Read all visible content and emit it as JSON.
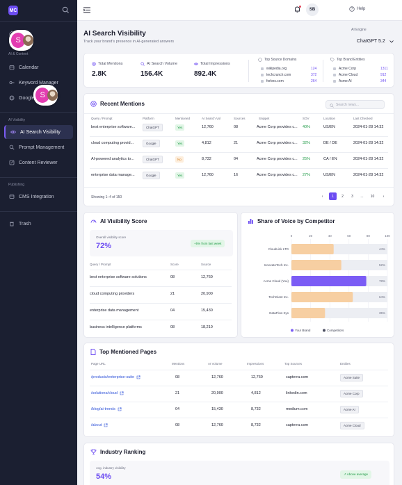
{
  "app": {
    "logo_text": "MC",
    "title": "AI Search Visibility",
    "subtitle": "Track your brand's presence in AI-generated answers"
  },
  "colors": {
    "accent": "#6d4df2",
    "green": "#1f9a46",
    "orange": "#f7cfa2",
    "sidebar": "#1b1f31"
  },
  "sidebar": {
    "sections": [
      "AI & Content",
      "AI Visibility",
      "Publishing"
    ],
    "items": [
      {
        "label": "Calendar",
        "icon": "calendar-icon"
      },
      {
        "label": "Keyword Manager",
        "icon": "key-icon"
      },
      {
        "label": "Google ...",
        "icon": "globe-icon"
      },
      {
        "label": "AI Search Visibility",
        "icon": "eye-icon"
      },
      {
        "label": "Prompt Management",
        "icon": "search-icon"
      },
      {
        "label": "Content Reviewer",
        "icon": "edit-icon"
      },
      {
        "label": "CMS Integration",
        "icon": "plug-icon"
      },
      {
        "label": "Trash",
        "icon": "trash-icon"
      }
    ],
    "avatar_letter": "S"
  },
  "topbar": {
    "help": "Help",
    "user_initials": "SB"
  },
  "engine": {
    "label": "AI Engine",
    "value": "ChatGPT 5.2"
  },
  "metrics": [
    {
      "label": "Total Mentions",
      "value": "2.8K",
      "icon": "at-icon"
    },
    {
      "label": "AI Search Volume",
      "value": "156.4K",
      "icon": "search-icon"
    },
    {
      "label": "Total Impressions",
      "value": "892.4K",
      "icon": "eye-icon"
    }
  ],
  "top_domains": {
    "title": "Top Source Domains",
    "rows": [
      {
        "name": "wikipedia.org",
        "count": "124"
      },
      {
        "name": "techcrunch.com",
        "count": "372"
      },
      {
        "name": "forbes.com",
        "count": "264"
      }
    ]
  },
  "top_entities": {
    "title": "Top Brand Entities",
    "rows": [
      {
        "name": "Acme Corp",
        "count": "1311"
      },
      {
        "name": "Acme Cloud",
        "count": "912"
      },
      {
        "name": "Acme AI",
        "count": "344"
      }
    ]
  },
  "recent_mentions": {
    "title": "Recent Mentions",
    "search_placeholder": "Search news...",
    "columns": [
      "Query / Prompt",
      "Platform",
      "Mentioned",
      "AI Search Vol",
      "Sources",
      "Snippet",
      "SOV",
      "Location",
      "Last Checked"
    ],
    "rows": [
      {
        "query": "best enterprise software...",
        "platform": "ChatGPT",
        "mentioned": "Yes",
        "vol": "12,760",
        "sources": "08",
        "snippet": "Acme Corp provides c...",
        "sov": "40%",
        "location": "US/EN",
        "checked": "2024-01-28 14:32"
      },
      {
        "query": "cloud computing provid...",
        "platform": "Google",
        "mentioned": "Yes",
        "vol": "4,812",
        "sources": "21",
        "snippet": "Acme Corp provides c...",
        "sov": "32%",
        "location": "DE / DE",
        "checked": "2024-01-28 14:32"
      },
      {
        "query": "AI-powered analytics to...",
        "platform": "ChatGPT",
        "mentioned": "No",
        "vol": "8,732",
        "sources": "04",
        "snippet": "Acme Corp provides c...",
        "sov": "25%",
        "location": "CA / EN",
        "checked": "2024-01-28 14:32"
      },
      {
        "query": "enterprise data manage...",
        "platform": "Google",
        "mentioned": "Yes",
        "vol": "12,760",
        "sources": "16",
        "snippet": "Acme Corp provides c...",
        "sov": "27%",
        "location": "US/EN",
        "checked": "2024-01-28 14:32"
      }
    ],
    "showing": "Showing 1–4 of 150",
    "pages": [
      "‹",
      "1",
      "2",
      "3",
      "...",
      "10",
      "›"
    ]
  },
  "visibility_score": {
    "title": "AI Visibility Score",
    "box_label": "Overall visibility score",
    "value": "72%",
    "badge": "+5% from last week",
    "columns": [
      "Query / Prompt",
      "Score",
      "Source"
    ],
    "rows": [
      {
        "query": "best enterprise software solutions",
        "score": "08",
        "source": "12,760"
      },
      {
        "query": "cloud computing providers",
        "score": "21",
        "source": "20,900"
      },
      {
        "query": "enterprise data management",
        "score": "04",
        "source": "15,430"
      },
      {
        "query": "business intelligence platforms",
        "score": "08",
        "source": "18,210"
      }
    ]
  },
  "share_of_voice": {
    "title": "Share of Voice by Competitor",
    "legend": [
      "Your Brand",
      "Competitors"
    ]
  },
  "chart_data": {
    "type": "bar",
    "orientation": "horizontal",
    "categories": [
      "CloudLink LTD",
      "InnovateTech Inc.",
      "Acme Cloud (You)",
      "TechGiant Inc.",
      "DataFlow Sys"
    ],
    "values": [
      44,
      52,
      78,
      64,
      35
    ],
    "value_labels": [
      "44%",
      "52%",
      "78%",
      "64%",
      "35%"
    ],
    "highlight_index": 2,
    "xlim": [
      0,
      100
    ],
    "xticks": [
      "0",
      "20",
      "40",
      "60",
      "80",
      "100"
    ],
    "legend": [
      "Your Brand",
      "Competitors"
    ],
    "colors": {
      "brand": "#7b5cf5",
      "competitor": "#f7cfa2"
    }
  },
  "top_pages": {
    "title": "Top Mentioned Pages",
    "columns": [
      "Page URL",
      "Mentions",
      "AI Volume",
      "Impressions",
      "Top Sources",
      "Entities"
    ],
    "rows": [
      {
        "url": "/products/enterprise-suite",
        "mentions": "08",
        "volume": "12,760",
        "impressions": "12,760",
        "source": "capterra.com",
        "entity": "Acme Suite"
      },
      {
        "url": "/solutions/cloud",
        "mentions": "21",
        "volume": "20,900",
        "impressions": "4,812",
        "source": "linkedin.com",
        "entity": "Acme Corp"
      },
      {
        "url": "/blog/ai-trends",
        "mentions": "04",
        "volume": "15,430",
        "impressions": "8,732",
        "source": "medium.com",
        "entity": "Acme AI"
      },
      {
        "url": "/about",
        "mentions": "08",
        "volume": "12,760",
        "impressions": "8,732",
        "source": "capterra.com",
        "entity": "Acme Cloud"
      }
    ]
  },
  "industry_ranking": {
    "title": "Industry Ranking",
    "box_label": "Avg. industry visibility",
    "value": "54%",
    "badge": "Above average"
  }
}
